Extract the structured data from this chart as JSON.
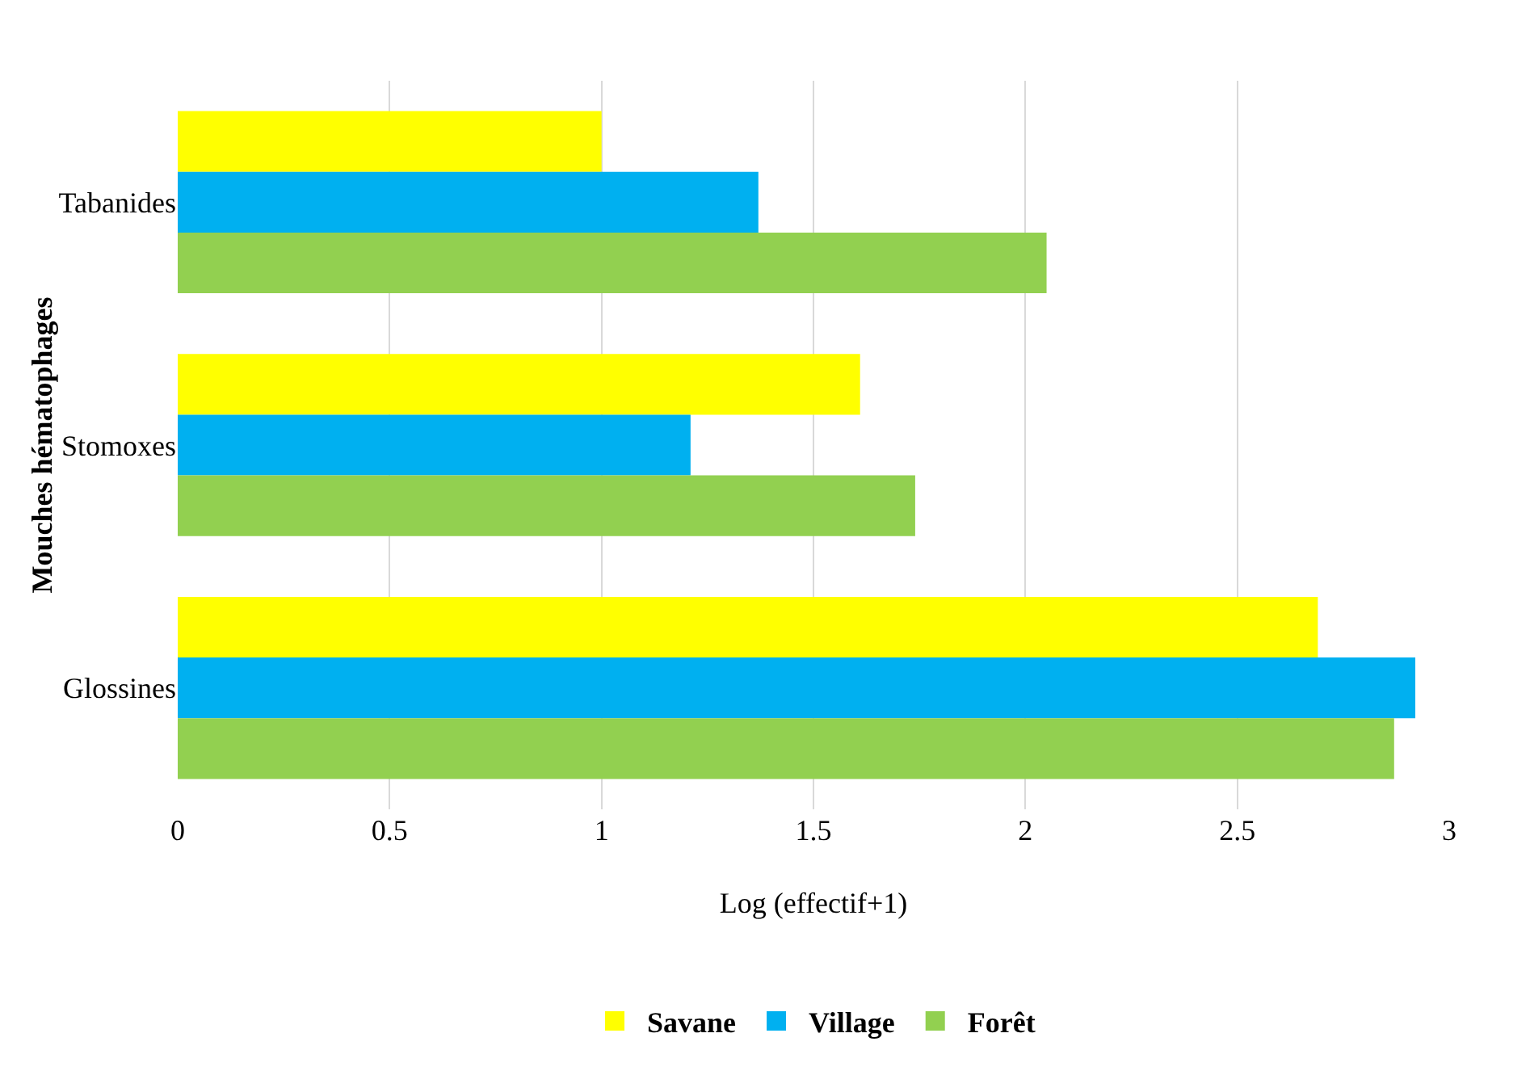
{
  "chart_data": {
    "type": "bar",
    "orientation": "horizontal",
    "categories": [
      "Tabanides",
      "Stomoxes",
      "Glossines"
    ],
    "series": [
      {
        "name": "Savane",
        "color": "#ffff00",
        "values": [
          1.0,
          1.61,
          2.69
        ]
      },
      {
        "name": "Village",
        "color": "#00b0f0",
        "values": [
          1.37,
          1.21,
          2.92
        ]
      },
      {
        "name": "Forêt",
        "color": "#92d050",
        "values": [
          2.05,
          1.74,
          2.87
        ]
      }
    ],
    "xlim": [
      0,
      3
    ],
    "xticks": [
      0,
      0.5,
      1,
      1.5,
      2,
      2.5,
      3
    ],
    "xlabel": "Log (effectif+1)",
    "ylabel": "Mouches hématophages",
    "grid": "x",
    "legend": "bottom"
  }
}
